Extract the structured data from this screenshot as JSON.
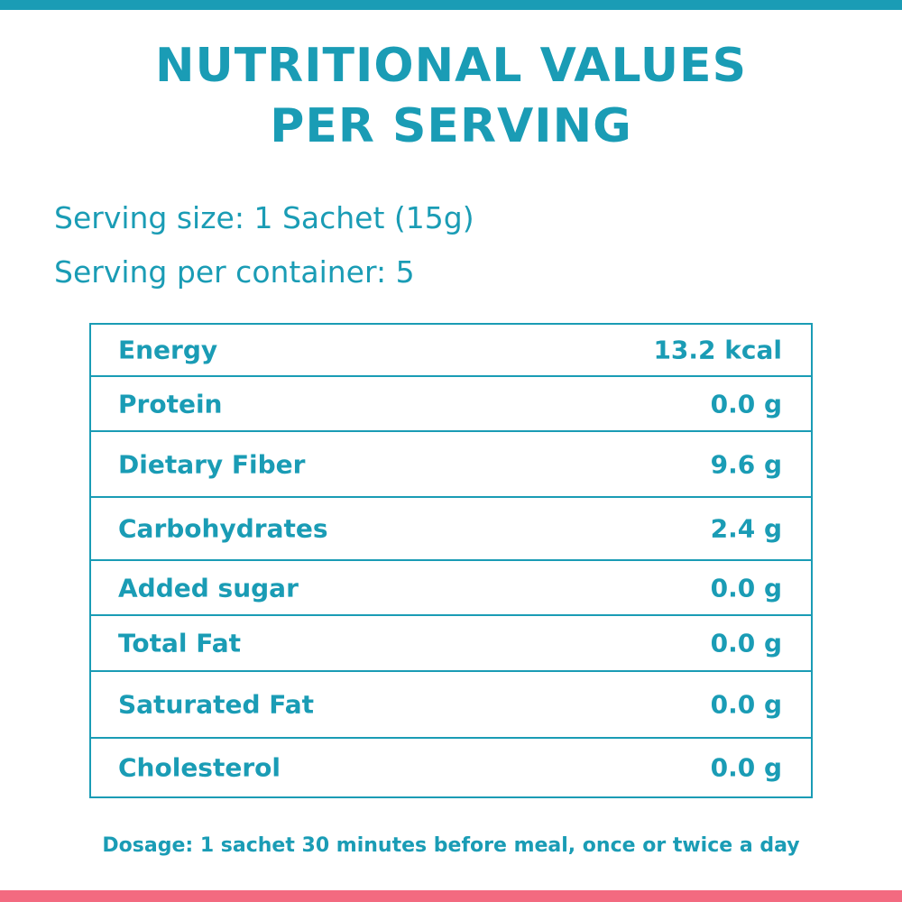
{
  "title": {
    "line1": "NUTRITIONAL VALUES",
    "line2": "PER SERVING"
  },
  "serving": {
    "size": "Serving size: 1 Sachet (15g)",
    "per_container": "Serving per container: 5"
  },
  "nutrients": [
    {
      "name": "Energy",
      "value": "13.2 kcal"
    },
    {
      "name": "Protein",
      "value": "0.0 g"
    },
    {
      "name": "Dietary Fiber",
      "value": "9.6 g"
    },
    {
      "name": "Carbohydrates",
      "value": "2.4 g"
    },
    {
      "name": "Added sugar",
      "value": "0.0 g"
    },
    {
      "name": "Total Fat",
      "value": "0.0 g"
    },
    {
      "name": "Saturated Fat",
      "value": "0.0 g"
    },
    {
      "name": "Cholesterol",
      "value": "0.0 g"
    }
  ],
  "dosage": "Dosage: 1 sachet 30 minutes before meal, once or twice a day",
  "colors": {
    "primary": "#1a9cb5",
    "accent": "#f36a80",
    "background": "#ffffff"
  }
}
